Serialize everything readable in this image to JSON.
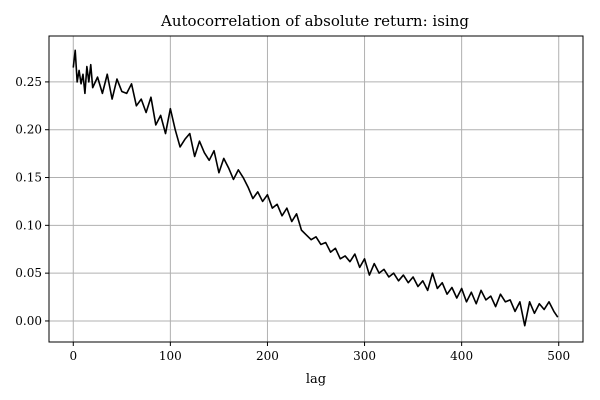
{
  "chart_data": {
    "type": "line",
    "title": "Autocorrelation of absolute return: ising",
    "xlabel": "lag",
    "ylabel": "",
    "xlim": [
      -25,
      525
    ],
    "ylim": [
      -0.022,
      0.298
    ],
    "xticks": [
      0,
      100,
      200,
      300,
      400,
      500
    ],
    "yticks": [
      0.0,
      0.05,
      0.1,
      0.15,
      0.2,
      0.25
    ],
    "xtick_labels": [
      "0",
      "100",
      "200",
      "300",
      "400",
      "500"
    ],
    "ytick_labels": [
      "0.00",
      "0.05",
      "0.10",
      "0.15",
      "0.20",
      "0.25"
    ],
    "grid": true,
    "legend": "none",
    "line_color": "#000000",
    "grid_color": "#b0b0b0",
    "series": [
      {
        "x": [
          0,
          2,
          4,
          6,
          8,
          10,
          12,
          14,
          16,
          18,
          20,
          25,
          30,
          35,
          40,
          45,
          50,
          55,
          60,
          65,
          70,
          75,
          80,
          85,
          90,
          95,
          100,
          105,
          110,
          115,
          120,
          125,
          130,
          135,
          140,
          145,
          150,
          155,
          160,
          165,
          170,
          175,
          180,
          185,
          190,
          195,
          200,
          205,
          210,
          215,
          220,
          225,
          230,
          235,
          240,
          245,
          250,
          255,
          260,
          265,
          270,
          275,
          280,
          285,
          290,
          295,
          300,
          305,
          310,
          315,
          320,
          325,
          330,
          335,
          340,
          345,
          350,
          355,
          360,
          365,
          370,
          375,
          380,
          385,
          390,
          395,
          400,
          405,
          410,
          415,
          420,
          425,
          430,
          435,
          440,
          445,
          450,
          455,
          460,
          465,
          470,
          475,
          480,
          485,
          490,
          495,
          499
        ],
        "values": [
          0.265,
          0.283,
          0.25,
          0.262,
          0.248,
          0.258,
          0.238,
          0.266,
          0.25,
          0.268,
          0.244,
          0.255,
          0.238,
          0.258,
          0.232,
          0.253,
          0.24,
          0.238,
          0.248,
          0.225,
          0.232,
          0.218,
          0.234,
          0.205,
          0.215,
          0.196,
          0.222,
          0.2,
          0.182,
          0.19,
          0.196,
          0.172,
          0.188,
          0.176,
          0.168,
          0.178,
          0.155,
          0.17,
          0.16,
          0.148,
          0.158,
          0.15,
          0.14,
          0.128,
          0.135,
          0.125,
          0.132,
          0.118,
          0.122,
          0.11,
          0.118,
          0.104,
          0.112,
          0.095,
          0.09,
          0.085,
          0.088,
          0.08,
          0.082,
          0.072,
          0.076,
          0.065,
          0.068,
          0.062,
          0.07,
          0.056,
          0.065,
          0.048,
          0.06,
          0.05,
          0.054,
          0.046,
          0.05,
          0.042,
          0.048,
          0.04,
          0.046,
          0.036,
          0.042,
          0.032,
          0.05,
          0.034,
          0.04,
          0.028,
          0.035,
          0.024,
          0.034,
          0.02,
          0.03,
          0.018,
          0.032,
          0.022,
          0.026,
          0.015,
          0.028,
          0.02,
          0.022,
          0.01,
          0.02,
          -0.005,
          0.02,
          0.008,
          0.018,
          0.012,
          0.02,
          0.01,
          0.004
        ]
      }
    ]
  }
}
